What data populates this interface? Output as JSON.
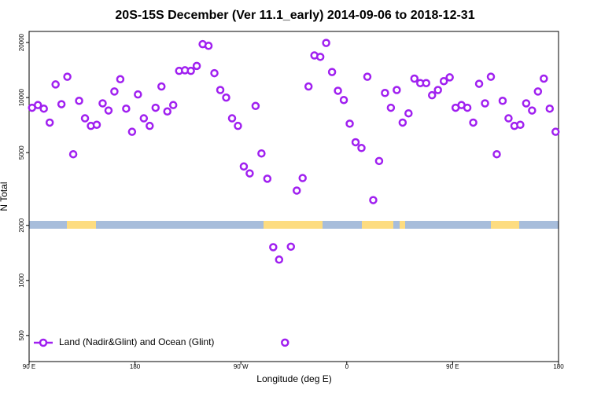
{
  "chart_data": {
    "type": "scatter",
    "title": "20S-15S December (Ver 11.1_early)   2014-09-06 to 2018-12-31",
    "x_label": "Longitude (deg E)",
    "y_label": "N Total",
    "x": [
      92.5,
      97.5,
      102.5,
      107.5,
      112.5,
      117.5,
      122.5,
      127.5,
      132.5,
      137.5,
      142.5,
      147.5,
      152.5,
      157.5,
      162.5,
      167.5,
      172.5,
      177.5,
      182.5,
      187.5,
      192.5,
      197.5,
      202.5,
      207.5,
      212.5,
      217.5,
      222.5,
      227.5,
      232.5,
      237.5,
      242.5,
      247.5,
      252.5,
      257.5,
      262.5,
      267.5,
      272.5,
      277.5,
      282.5,
      287.5,
      292.5,
      297.5,
      302.5,
      307.5,
      312.5,
      317.5,
      322.5,
      327.5,
      332.5,
      337.5,
      342.5,
      347.5,
      352.5,
      357.5,
      362.5,
      367.5,
      372.5,
      377.5,
      382.5,
      387.5,
      392.5,
      397.5,
      402.5,
      407.5,
      412.5,
      417.5,
      422.5,
      427.5,
      432.5,
      437.5,
      442.5,
      447.5,
      452.5,
      457.5,
      462.5,
      467.5,
      472.5,
      477.5,
      482.5,
      487.5,
      492.5,
      497.5,
      502.5,
      507.5,
      512.5,
      517.5,
      522.5,
      527.5,
      532.5,
      537.5
    ],
    "series": [
      {
        "name": "Land (Nadir&Glint) and Ocean (Glint)",
        "color": "#a020f0",
        "values": [
          8800,
          9100,
          8700,
          7300,
          11800,
          9200,
          13000,
          4900,
          9600,
          7700,
          7000,
          7100,
          9300,
          8500,
          10800,
          12600,
          8700,
          6500,
          10400,
          7700,
          7000,
          8800,
          11500,
          8400,
          9100,
          14000,
          14100,
          14000,
          14900,
          19600,
          19200,
          13600,
          11000,
          10000,
          7700,
          7000,
          4200,
          3850,
          9000,
          4950,
          3600,
          1520,
          1300,
          457,
          1530,
          3100,
          3630,
          11500,
          17000,
          16700,
          19900,
          13800,
          10900,
          9700,
          7200,
          5700,
          5300,
          13000,
          2750,
          4500,
          10600,
          8800,
          11000,
          7300,
          8200,
          12700,
          12000,
          12000,
          10300,
          11000,
          12300,
          12900,
          8800,
          9100,
          8800,
          7300,
          11900,
          9300,
          13000,
          4900,
          9600,
          7700,
          7000,
          7100,
          9300,
          8500,
          10800,
          12700,
          8700,
          6500
        ]
      }
    ],
    "xlim": [
      90,
      540
    ],
    "xticks": [
      {
        "value": 90,
        "label": "90 E"
      },
      180,
      {
        "value": 270,
        "label": "90 W"
      },
      {
        "value": 360,
        "label": "0"
      },
      {
        "value": 450,
        "label": "90 E"
      },
      {
        "value": 540,
        "label": "180"
      }
    ],
    "ylim": [
      360,
      23000
    ],
    "yscale": "log",
    "yticks": [
      500,
      1000,
      2000,
      5000,
      10000,
      20000
    ],
    "legend": "bottom-left"
  }
}
